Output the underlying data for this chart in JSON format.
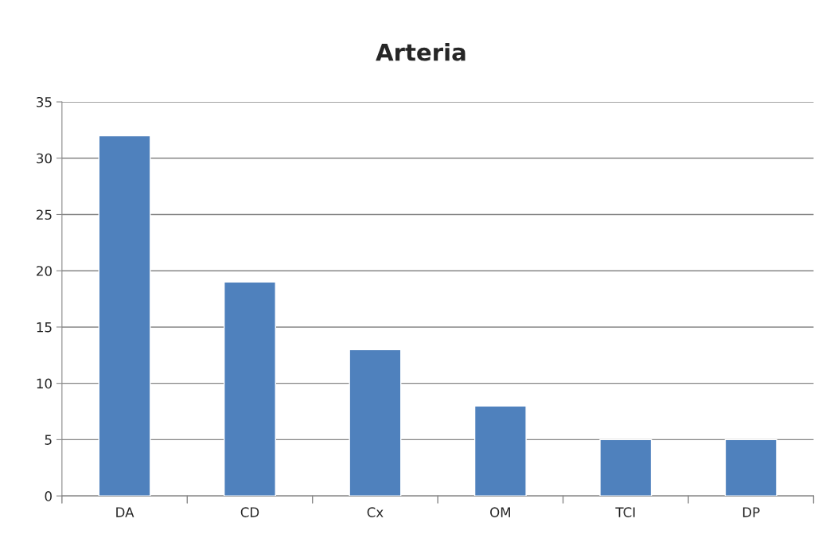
{
  "chart_data": {
    "type": "bar",
    "title": "Arteria",
    "categories": [
      "DA",
      "CD",
      "Cx",
      "OM",
      "TCI",
      "DP"
    ],
    "values": [
      32,
      19,
      13,
      8,
      5,
      5
    ],
    "color": "#4f81bd",
    "ylim": [
      0,
      35
    ],
    "yticks": [
      0,
      5,
      10,
      15,
      20,
      25,
      30,
      35
    ],
    "grid": "y",
    "legend": false
  }
}
